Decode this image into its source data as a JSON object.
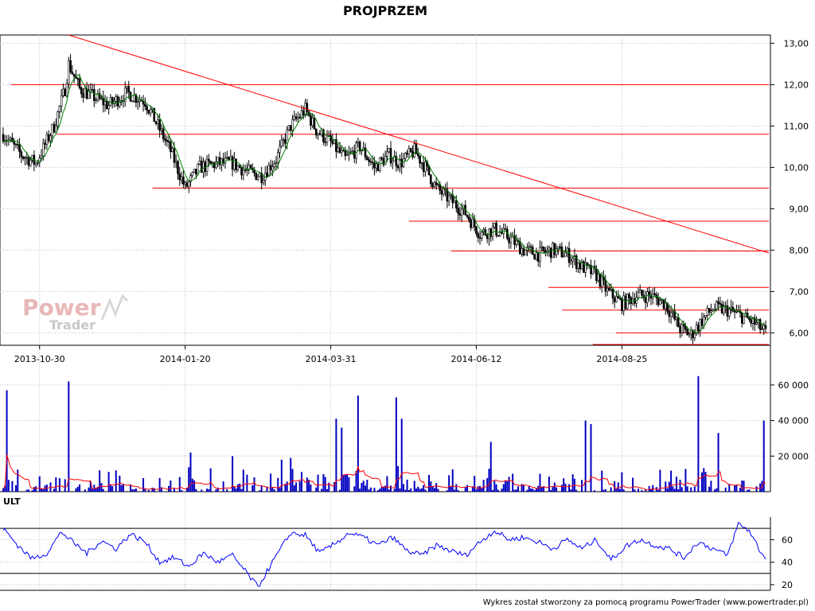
{
  "chart_data": [
    {
      "type": "candlestick",
      "title": "PROJPRZEM",
      "ylim": [
        5.7,
        13.2
      ],
      "y_ticks": [
        "13,00",
        "12,00",
        "11,00",
        "10,00",
        "9,00",
        "8,00",
        "7,00",
        "6,00"
      ],
      "y_tick_values": [
        13,
        12,
        11,
        10,
        9,
        8,
        7,
        6
      ],
      "x_tick_labels": [
        "2013-10-30",
        "2014-01-20",
        "2014-03-31",
        "2014-06-12",
        "2014-08-25"
      ],
      "x_tick_index": [
        20,
        100,
        180,
        260,
        340
      ],
      "n_bars": 420,
      "grid": true,
      "anchors": [
        [
          0,
          10.8
        ],
        [
          10,
          10.3
        ],
        [
          18,
          10.1
        ],
        [
          28,
          11.0
        ],
        [
          34,
          11.9
        ],
        [
          36,
          12.5
        ],
        [
          42,
          11.9
        ],
        [
          50,
          11.7
        ],
        [
          58,
          11.5
        ],
        [
          68,
          11.8
        ],
        [
          78,
          11.6
        ],
        [
          85,
          11.0
        ],
        [
          92,
          10.4
        ],
        [
          100,
          9.5
        ],
        [
          108,
          10.0
        ],
        [
          118,
          10.1
        ],
        [
          126,
          10.1
        ],
        [
          134,
          9.9
        ],
        [
          142,
          9.8
        ],
        [
          150,
          10.2
        ],
        [
          158,
          11.0
        ],
        [
          166,
          11.4
        ],
        [
          172,
          10.9
        ],
        [
          180,
          10.6
        ],
        [
          188,
          10.2
        ],
        [
          196,
          10.5
        ],
        [
          204,
          10.0
        ],
        [
          212,
          10.3
        ],
        [
          218,
          10.1
        ],
        [
          226,
          10.4
        ],
        [
          232,
          10.0
        ],
        [
          238,
          9.5
        ],
        [
          246,
          9.2
        ],
        [
          254,
          8.9
        ],
        [
          262,
          8.4
        ],
        [
          270,
          8.5
        ],
        [
          278,
          8.3
        ],
        [
          286,
          8.0
        ],
        [
          294,
          7.9
        ],
        [
          302,
          8.0
        ],
        [
          310,
          7.9
        ],
        [
          318,
          7.6
        ],
        [
          326,
          7.4
        ],
        [
          332,
          7.0
        ],
        [
          340,
          6.7
        ],
        [
          348,
          6.9
        ],
        [
          356,
          6.9
        ],
        [
          364,
          6.7
        ],
        [
          372,
          6.1
        ],
        [
          378,
          5.95
        ],
        [
          384,
          6.3
        ],
        [
          390,
          6.6
        ],
        [
          398,
          6.55
        ],
        [
          406,
          6.4
        ],
        [
          414,
          6.2
        ],
        [
          419,
          6.0
        ]
      ],
      "support_lines": [
        {
          "value": 12.0,
          "from": 0.01,
          "to": 1.0
        },
        {
          "value": 10.8,
          "from": 0.07,
          "to": 1.0
        },
        {
          "value": 9.5,
          "from": 0.195,
          "to": 1.0
        },
        {
          "value": 8.7,
          "from": 0.53,
          "to": 1.0
        },
        {
          "value": 7.98,
          "from": 0.585,
          "to": 1.0
        },
        {
          "value": 7.1,
          "from": 0.712,
          "to": 1.0
        },
        {
          "value": 6.55,
          "from": 0.73,
          "to": 1.0
        },
        {
          "value": 6.0,
          "from": 0.8,
          "to": 1.0
        },
        {
          "value": 5.72,
          "from": 0.77,
          "to": 1.0
        }
      ],
      "trend_line": {
        "from": [
          36,
          13.2
        ],
        "to": [
          419,
          7.93
        ]
      },
      "colors": {
        "line": "#ff0000",
        "candle": "#000000",
        "ma": "#008000",
        "grid": "#c0c0c0"
      }
    },
    {
      "type": "bar",
      "name": "volume",
      "y_ticks": [
        "60 000",
        "40 000",
        "20 000"
      ],
      "y_tick_values": [
        60000,
        40000,
        20000
      ],
      "ylim": [
        0,
        68000
      ],
      "n_bars": 420,
      "peaks": [
        [
          2,
          57000
        ],
        [
          36,
          62000
        ],
        [
          64,
          9000
        ],
        [
          103,
          22000
        ],
        [
          126,
          20000
        ],
        [
          153,
          18000
        ],
        [
          158,
          19000
        ],
        [
          183,
          41000
        ],
        [
          186,
          36000
        ],
        [
          195,
          54000
        ],
        [
          216,
          53000
        ],
        [
          219,
          41000
        ],
        [
          268,
          28000
        ],
        [
          320,
          40000
        ],
        [
          323,
          38000
        ],
        [
          382,
          65000
        ],
        [
          393,
          33000
        ],
        [
          418,
          40000
        ]
      ],
      "colors": {
        "bars": "#0000c0",
        "ma": "#ff0000"
      }
    },
    {
      "type": "line",
      "name": "ULT",
      "label": "ULT",
      "y_ticks": [
        "60",
        "40",
        "20"
      ],
      "y_tick_values": [
        60,
        40,
        20
      ],
      "ylim": [
        15,
        80
      ],
      "h_lines": [
        70,
        30
      ],
      "anchors": [
        [
          0,
          70
        ],
        [
          8,
          55
        ],
        [
          16,
          43
        ],
        [
          24,
          48
        ],
        [
          32,
          67
        ],
        [
          38,
          58
        ],
        [
          46,
          48
        ],
        [
          54,
          59
        ],
        [
          62,
          52
        ],
        [
          70,
          65
        ],
        [
          78,
          58
        ],
        [
          86,
          40
        ],
        [
          94,
          44
        ],
        [
          102,
          36
        ],
        [
          110,
          48
        ],
        [
          118,
          40
        ],
        [
          126,
          46
        ],
        [
          134,
          30
        ],
        [
          140,
          18
        ],
        [
          148,
          40
        ],
        [
          158,
          66
        ],
        [
          166,
          64
        ],
        [
          174,
          48
        ],
        [
          182,
          56
        ],
        [
          190,
          66
        ],
        [
          198,
          62
        ],
        [
          206,
          55
        ],
        [
          214,
          62
        ],
        [
          222,
          50
        ],
        [
          230,
          46
        ],
        [
          238,
          55
        ],
        [
          246,
          50
        ],
        [
          254,
          46
        ],
        [
          262,
          58
        ],
        [
          270,
          68
        ],
        [
          278,
          60
        ],
        [
          286,
          62
        ],
        [
          294,
          58
        ],
        [
          302,
          52
        ],
        [
          310,
          60
        ],
        [
          318,
          52
        ],
        [
          326,
          60
        ],
        [
          334,
          42
        ],
        [
          342,
          54
        ],
        [
          350,
          60
        ],
        [
          358,
          55
        ],
        [
          366,
          52
        ],
        [
          374,
          44
        ],
        [
          382,
          58
        ],
        [
          390,
          52
        ],
        [
          398,
          46
        ],
        [
          404,
          74
        ],
        [
          410,
          68
        ],
        [
          416,
          50
        ],
        [
          419,
          43
        ]
      ],
      "color": "#0000ff"
    }
  ],
  "logo": {
    "line1": "Power",
    "line2": "Trader"
  },
  "footer": {
    "text": "Wykres został stworzony za pomocą programu PowerTrader (www.powertrader.pl)"
  }
}
